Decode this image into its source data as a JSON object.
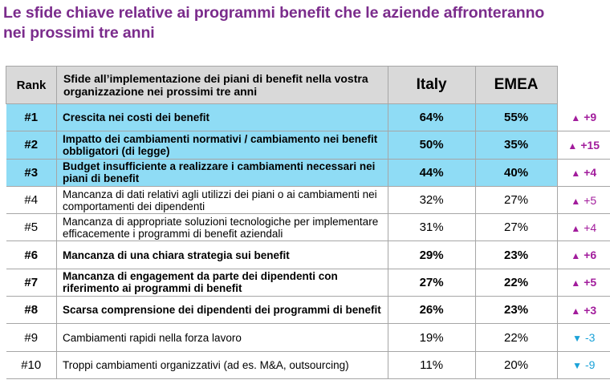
{
  "title_line1": "Le sfide chiave relative ai programmi benefit che le aziende affronteranno",
  "title_line2": "nei prossimi tre anni",
  "header": {
    "rank": "Rank",
    "challenge": "Sfide all’implementazione  dei piani di benefit nella vostra organizzazione nei prossimi tre anni",
    "italy": "Italy",
    "emea": "EMEA"
  },
  "colors": {
    "highlight": "#8fdcf5",
    "up": "#a21c9c",
    "down": "#1aa2d8",
    "title": "#7b2c8c"
  },
  "rows": [
    {
      "rank": "#1",
      "text": "Crescita nei costi dei benefit",
      "italy": "64%",
      "emea": "55%",
      "delta": "+9",
      "dir": "up",
      "bold": true,
      "highlight": true
    },
    {
      "rank": "#2",
      "text": "Impatto dei cambiamenti normativi / cambiamento nei benefit obbligatori (di legge)",
      "italy": "50%",
      "emea": "35%",
      "delta": "+15",
      "dir": "up",
      "bold": true,
      "highlight": true
    },
    {
      "rank": "#3",
      "text": "Budget insufficiente a  realizzare i cambiamenti necessari nei piani di benefit",
      "italy": "44%",
      "emea": "40%",
      "delta": "+4",
      "dir": "up",
      "bold": true,
      "highlight": true
    },
    {
      "rank": "#4",
      "text": "Mancanza di dati relativi agli utilizzi  dei piani o ai cambiamenti nei comportamenti dei dipendenti",
      "italy": "32%",
      "emea": "27%",
      "delta": "+5",
      "dir": "up",
      "bold": false,
      "highlight": false
    },
    {
      "rank": "#5",
      "text": "Mancanza di appropriate soluzioni tecnologiche per implementare efficacemente i programmi di benefit aziendali",
      "italy": "31%",
      "emea": "27%",
      "delta": "+4",
      "dir": "up",
      "bold": false,
      "highlight": false
    },
    {
      "rank": "#6",
      "text": "Mancanza di una chiara strategia sui benefit",
      "italy": "29%",
      "emea": "23%",
      "delta": "+6",
      "dir": "up",
      "bold": true,
      "highlight": false
    },
    {
      "rank": "#7",
      "text": "Mancanza di engagement da parte dei dipendenti con riferimento ai programmi di benefit",
      "italy": "27%",
      "emea": "22%",
      "delta": "+5",
      "dir": "up",
      "bold": true,
      "highlight": false
    },
    {
      "rank": "#8",
      "text": "Scarsa comprensione dei dipendenti dei programmi di benefit",
      "italy": "26%",
      "emea": "23%",
      "delta": "+3",
      "dir": "up",
      "bold": true,
      "highlight": false
    },
    {
      "rank": "#9",
      "text": "Cambiamenti rapidi nella forza lavoro",
      "italy": "19%",
      "emea": "22%",
      "delta": "-3",
      "dir": "down",
      "bold": false,
      "highlight": false
    },
    {
      "rank": "#10",
      "text": "Troppi cambiamenti organizzativi (ad es. M&A, outsourcing)",
      "italy": "11%",
      "emea": "20%",
      "delta": "-9",
      "dir": "down",
      "bold": false,
      "highlight": false
    }
  ]
}
